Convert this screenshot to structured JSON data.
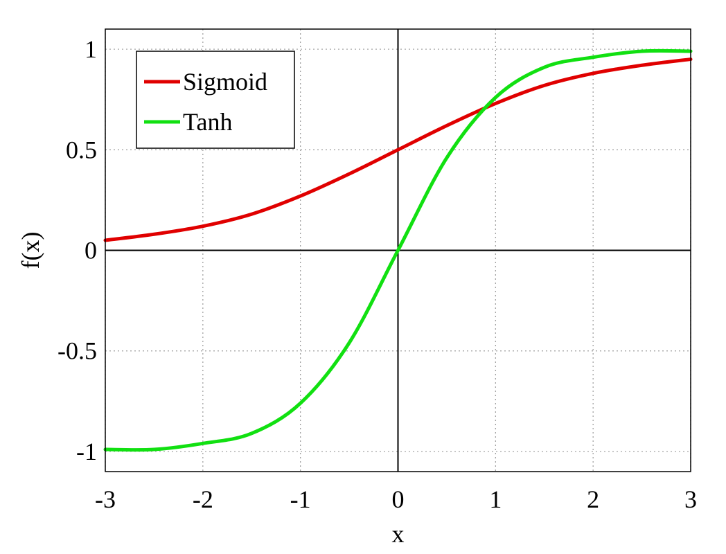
{
  "chart_data": {
    "type": "line",
    "title": "",
    "xlabel": "x",
    "ylabel": "f(x)",
    "xlim": [
      -3,
      3
    ],
    "ylim": [
      -1.1,
      1.1
    ],
    "x_ticks": [
      -3,
      -2,
      -1,
      0,
      1,
      2,
      3
    ],
    "y_ticks": [
      -1,
      -0.5,
      0,
      0.5,
      1
    ],
    "x_tick_labels": [
      "-3",
      "-2",
      "-1",
      "0",
      "1",
      "2",
      "3"
    ],
    "y_tick_labels": [
      "-1",
      "-0.5",
      "0",
      "0.5",
      "1"
    ],
    "grid": true,
    "legend_position": "top-left",
    "x": [
      -3,
      -2.5,
      -2,
      -1.5,
      -1,
      -0.5,
      0,
      0.5,
      1,
      1.5,
      2,
      2.5,
      3
    ],
    "series": [
      {
        "name": "Sigmoid",
        "color": "#e00000",
        "values": [
          0.05,
          0.08,
          0.12,
          0.18,
          0.27,
          0.38,
          0.5,
          0.62,
          0.73,
          0.82,
          0.88,
          0.92,
          0.95
        ]
      },
      {
        "name": "Tanh",
        "color": "#11e011",
        "values": [
          -0.99,
          -0.99,
          -0.96,
          -0.91,
          -0.76,
          -0.46,
          0,
          0.46,
          0.76,
          0.91,
          0.96,
          0.99,
          0.99
        ]
      }
    ]
  }
}
